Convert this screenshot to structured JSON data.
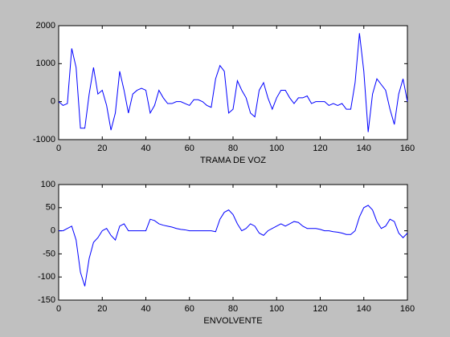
{
  "chart_data": [
    {
      "type": "line",
      "xlabel": "TRAMA DE VOZ",
      "x": [
        0,
        2,
        4,
        6,
        8,
        10,
        12,
        14,
        16,
        18,
        20,
        22,
        24,
        26,
        28,
        30,
        32,
        34,
        36,
        38,
        40,
        42,
        44,
        46,
        48,
        50,
        52,
        54,
        56,
        58,
        60,
        62,
        64,
        66,
        68,
        70,
        72,
        74,
        76,
        78,
        80,
        82,
        84,
        86,
        88,
        90,
        92,
        94,
        96,
        98,
        100,
        102,
        104,
        106,
        108,
        110,
        112,
        114,
        116,
        118,
        120,
        122,
        124,
        126,
        128,
        130,
        132,
        134,
        136,
        138,
        140,
        142,
        144,
        146,
        148,
        150,
        152,
        154,
        156,
        158,
        160
      ],
      "series": [
        {
          "color": "#0000ff",
          "values": [
            0,
            -100,
            -50,
            1400,
            900,
            -700,
            -700,
            200,
            900,
            200,
            300,
            -100,
            -750,
            -300,
            800,
            300,
            -300,
            200,
            300,
            350,
            300,
            -300,
            -100,
            300,
            100,
            -50,
            -50,
            0,
            0,
            -50,
            -100,
            50,
            50,
            0,
            -100,
            -150,
            600,
            950,
            800,
            -300,
            -200,
            550,
            300,
            100,
            -300,
            -400,
            300,
            500,
            100,
            -200,
            100,
            300,
            300,
            100,
            -50,
            100,
            100,
            150,
            -50,
            0,
            0,
            0,
            -100,
            -50,
            -100,
            -50,
            -200,
            -200,
            500,
            1800,
            800,
            -800,
            200,
            600,
            450,
            300,
            -200,
            -600,
            200,
            600,
            0
          ]
        }
      ],
      "xlim": [
        0,
        160
      ],
      "xticks": [
        0,
        20,
        40,
        60,
        80,
        100,
        120,
        140,
        160
      ],
      "ylim": [
        -1000,
        2000
      ],
      "yticks": [
        -1000,
        0,
        1000,
        2000
      ],
      "grid": false
    },
    {
      "type": "line",
      "xlabel": "ENVOLVENTE",
      "x": [
        0,
        2,
        4,
        6,
        8,
        10,
        12,
        14,
        16,
        18,
        20,
        22,
        24,
        26,
        28,
        30,
        32,
        34,
        36,
        38,
        40,
        42,
        44,
        46,
        48,
        50,
        52,
        54,
        56,
        58,
        60,
        62,
        64,
        66,
        68,
        70,
        72,
        74,
        76,
        78,
        80,
        82,
        84,
        86,
        88,
        90,
        92,
        94,
        96,
        98,
        100,
        102,
        104,
        106,
        108,
        110,
        112,
        114,
        116,
        118,
        120,
        122,
        124,
        126,
        128,
        130,
        132,
        134,
        136,
        138,
        140,
        142,
        144,
        146,
        148,
        150,
        152,
        154,
        156,
        158,
        160
      ],
      "series": [
        {
          "color": "#0000ff",
          "values": [
            0,
            0,
            5,
            10,
            -20,
            -90,
            -120,
            -60,
            -25,
            -15,
            0,
            5,
            -10,
            -20,
            10,
            15,
            0,
            0,
            0,
            0,
            0,
            25,
            22,
            15,
            12,
            10,
            8,
            5,
            3,
            2,
            0,
            0,
            0,
            0,
            0,
            0,
            -2,
            25,
            40,
            45,
            35,
            15,
            0,
            5,
            15,
            10,
            -5,
            -10,
            0,
            5,
            10,
            15,
            10,
            15,
            20,
            18,
            10,
            5,
            5,
            5,
            3,
            0,
            0,
            -2,
            -3,
            -5,
            -8,
            -8,
            0,
            30,
            50,
            55,
            45,
            20,
            5,
            10,
            25,
            20,
            -5,
            -15,
            -5
          ]
        }
      ],
      "xlim": [
        0,
        160
      ],
      "xticks": [
        0,
        20,
        40,
        60,
        80,
        100,
        120,
        140,
        160
      ],
      "ylim": [
        -150,
        100
      ],
      "yticks": [
        -150,
        -100,
        -50,
        0,
        50,
        100
      ],
      "grid": false
    }
  ]
}
